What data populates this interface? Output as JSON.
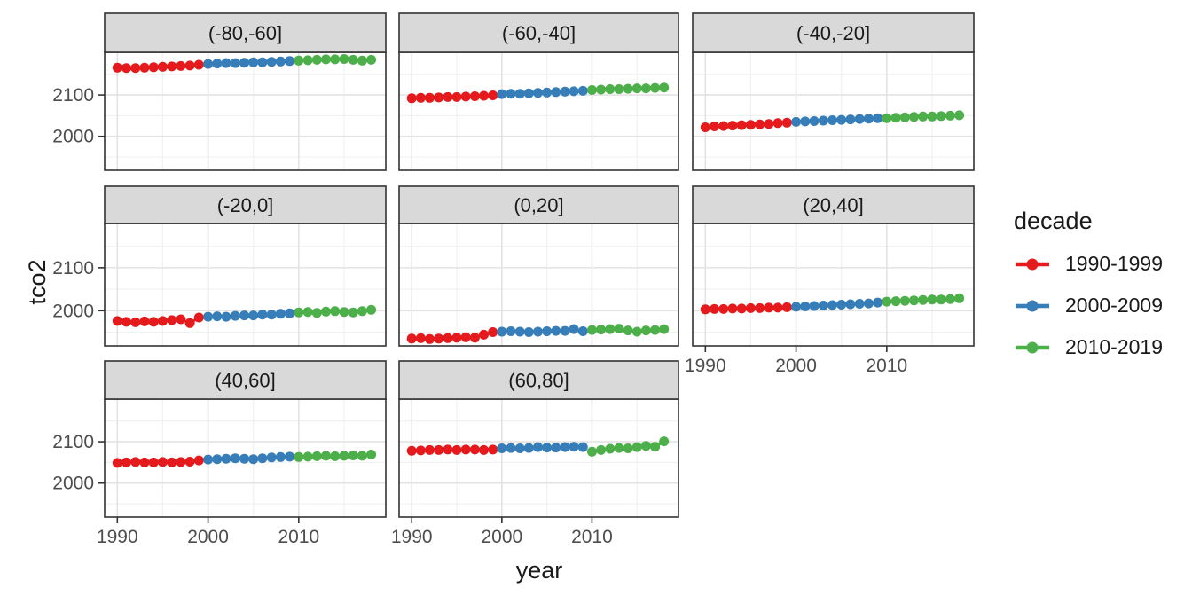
{
  "chart_data": {
    "type": "scatter",
    "title": "",
    "xlabel": "year",
    "ylabel": "tco2",
    "legend_title": "decade",
    "legend_position": "right",
    "grid": true,
    "x_ticks": [
      1990,
      2000,
      2010
    ],
    "x_minor_ticks": [
      1995,
      2005,
      2015
    ],
    "y_ticks": [
      2000,
      2100
    ],
    "y_minor_ticks": [
      1950,
      2050,
      2150
    ],
    "xlim": [
      1988.6,
      2019.6
    ],
    "ylim": [
      1918,
      2203
    ],
    "years": [
      1990,
      1991,
      1992,
      1993,
      1994,
      1995,
      1996,
      1997,
      1998,
      1999,
      2000,
      2001,
      2002,
      2003,
      2004,
      2005,
      2006,
      2007,
      2008,
      2009,
      2010,
      2011,
      2012,
      2013,
      2014,
      2015,
      2016,
      2017,
      2018
    ],
    "decades": [
      {
        "label": "1990-1999",
        "color": "#E41A1C",
        "start": 1990,
        "end": 1999
      },
      {
        "label": "2000-2009",
        "color": "#377EB8",
        "start": 2000,
        "end": 2009
      },
      {
        "label": "2010-2019",
        "color": "#4DAF4A",
        "start": 2010,
        "end": 2019
      }
    ],
    "facets": [
      {
        "label": "(-80,-60]",
        "values": [
          2166,
          2165,
          2165,
          2166,
          2167,
          2168,
          2169,
          2170,
          2171,
          2173,
          2175,
          2176,
          2177,
          2177,
          2178,
          2179,
          2179,
          2180,
          2181,
          2182,
          2183,
          2184,
          2185,
          2186,
          2186,
          2187,
          2185,
          2183,
          2185
        ]
      },
      {
        "label": "(-60,-40]",
        "values": [
          2092,
          2093,
          2093,
          2094,
          2095,
          2095,
          2096,
          2097,
          2098,
          2099,
          2102,
          2103,
          2103,
          2104,
          2105,
          2106,
          2107,
          2108,
          2109,
          2110,
          2112,
          2113,
          2114,
          2114,
          2115,
          2116,
          2116,
          2117,
          2118
        ]
      },
      {
        "label": "(-40,-20]",
        "values": [
          2022,
          2024,
          2025,
          2026,
          2027,
          2028,
          2029,
          2030,
          2032,
          2033,
          2035,
          2036,
          2037,
          2038,
          2039,
          2040,
          2041,
          2042,
          2043,
          2044,
          2044,
          2045,
          2046,
          2047,
          2048,
          2048,
          2049,
          2050,
          2051
        ]
      },
      {
        "label": "(-20,0]",
        "values": [
          1976,
          1974,
          1973,
          1975,
          1974,
          1976,
          1978,
          1980,
          1971,
          1984,
          1986,
          1987,
          1986,
          1988,
          1989,
          1989,
          1991,
          1991,
          1993,
          1994,
          1996,
          1997,
          1995,
          1998,
          1999,
          1997,
          1996,
          1999,
          2002
        ]
      },
      {
        "label": "(0,20]",
        "values": [
          1935,
          1936,
          1934,
          1935,
          1936,
          1937,
          1938,
          1937,
          1944,
          1950,
          1951,
          1952,
          1951,
          1950,
          1951,
          1952,
          1953,
          1953,
          1957,
          1952,
          1955,
          1956,
          1957,
          1958,
          1954,
          1951,
          1954,
          1955,
          1957
        ]
      },
      {
        "label": "(20,40]",
        "values": [
          2003,
          2004,
          2004,
          2005,
          2005,
          2006,
          2006,
          2007,
          2007,
          2008,
          2009,
          2010,
          2011,
          2012,
          2013,
          2014,
          2015,
          2016,
          2017,
          2019,
          2021,
          2022,
          2023,
          2024,
          2025,
          2026,
          2026,
          2027,
          2029
        ]
      },
      {
        "label": "(40,60]",
        "values": [
          2049,
          2050,
          2051,
          2050,
          2050,
          2051,
          2050,
          2051,
          2052,
          2055,
          2057,
          2058,
          2059,
          2060,
          2059,
          2058,
          2060,
          2062,
          2063,
          2064,
          2063,
          2064,
          2065,
          2066,
          2065,
          2066,
          2067,
          2066,
          2069
        ]
      },
      {
        "label": "(60,80]",
        "values": [
          2078,
          2079,
          2080,
          2080,
          2081,
          2080,
          2081,
          2081,
          2080,
          2081,
          2084,
          2085,
          2084,
          2085,
          2087,
          2086,
          2086,
          2087,
          2088,
          2087,
          2076,
          2080,
          2083,
          2085,
          2084,
          2087,
          2090,
          2088,
          2101
        ]
      }
    ]
  },
  "style": {
    "background": "#FFFFFF",
    "strip_fill": "#D9D9D9",
    "panel_border": "#333333",
    "grid_major": "#E3E3E3",
    "grid_minor": "#F1F1F1",
    "axis_text": "#4D4D4D",
    "text": "#1A1A1A"
  }
}
